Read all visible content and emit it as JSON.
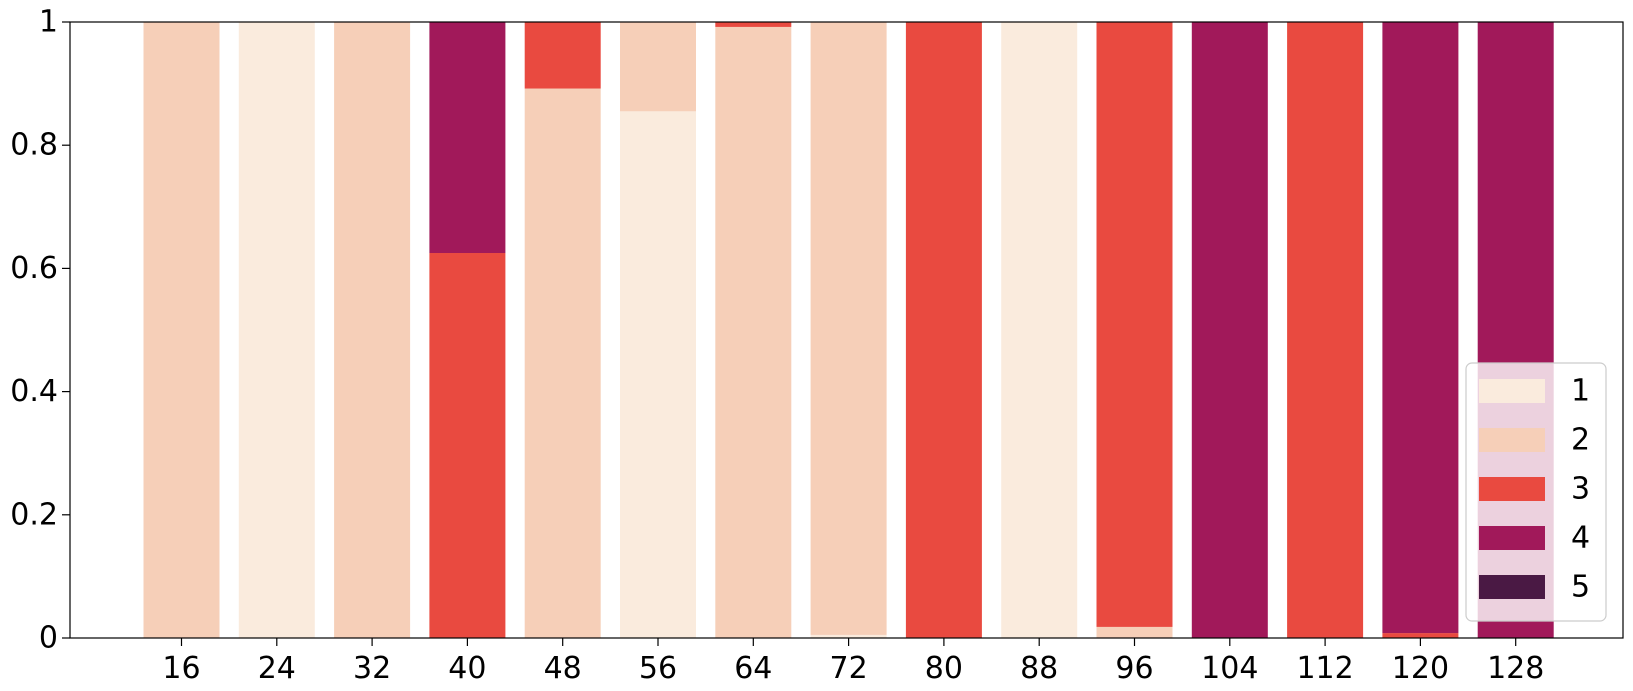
{
  "chart_data": {
    "type": "bar",
    "stacked": true,
    "categories": [
      "16",
      "24",
      "32",
      "40",
      "48",
      "56",
      "64",
      "72",
      "80",
      "88",
      "96",
      "104",
      "112",
      "120",
      "128"
    ],
    "series": [
      {
        "name": "1",
        "color": "#FAEBDD",
        "values": [
          0,
          1.0,
          0,
          0,
          0,
          0.855,
          0,
          0.005,
          0,
          1.0,
          0,
          0,
          0,
          0,
          0
        ]
      },
      {
        "name": "2",
        "color": "#F6CFB8",
        "values": [
          1.0,
          0,
          1.0,
          0,
          0.892,
          0.145,
          0.992,
          0.995,
          0,
          0,
          0.018,
          0,
          0,
          0,
          0
        ]
      },
      {
        "name": "3",
        "color": "#E94A40",
        "values": [
          0,
          0,
          0,
          0.625,
          0.108,
          0,
          0.008,
          0,
          1.0,
          0,
          0.982,
          0,
          1.0,
          0.008,
          0
        ]
      },
      {
        "name": "4",
        "color": "#A1195A",
        "values": [
          0,
          0,
          0,
          0.375,
          0,
          0,
          0,
          0,
          0,
          0,
          0,
          1.0,
          0,
          0.992,
          1.0
        ]
      },
      {
        "name": "5",
        "color": "#4A1944",
        "values": [
          0,
          0,
          0,
          0,
          0,
          0,
          0,
          0,
          0,
          0,
          0,
          0,
          0,
          0,
          0
        ]
      }
    ],
    "ylim": [
      0,
      1
    ],
    "yticks": [
      "0",
      "0.2",
      "0.4",
      "0.6",
      "0.8",
      "1"
    ],
    "ytick_values": [
      0,
      0.2,
      0.4,
      0.6,
      0.8,
      1
    ],
    "xlabel": "",
    "ylabel": "",
    "title": "",
    "legend": {
      "position": "lower-right",
      "labels": [
        "1",
        "2",
        "3",
        "4",
        "5"
      ]
    },
    "grid": false
  }
}
